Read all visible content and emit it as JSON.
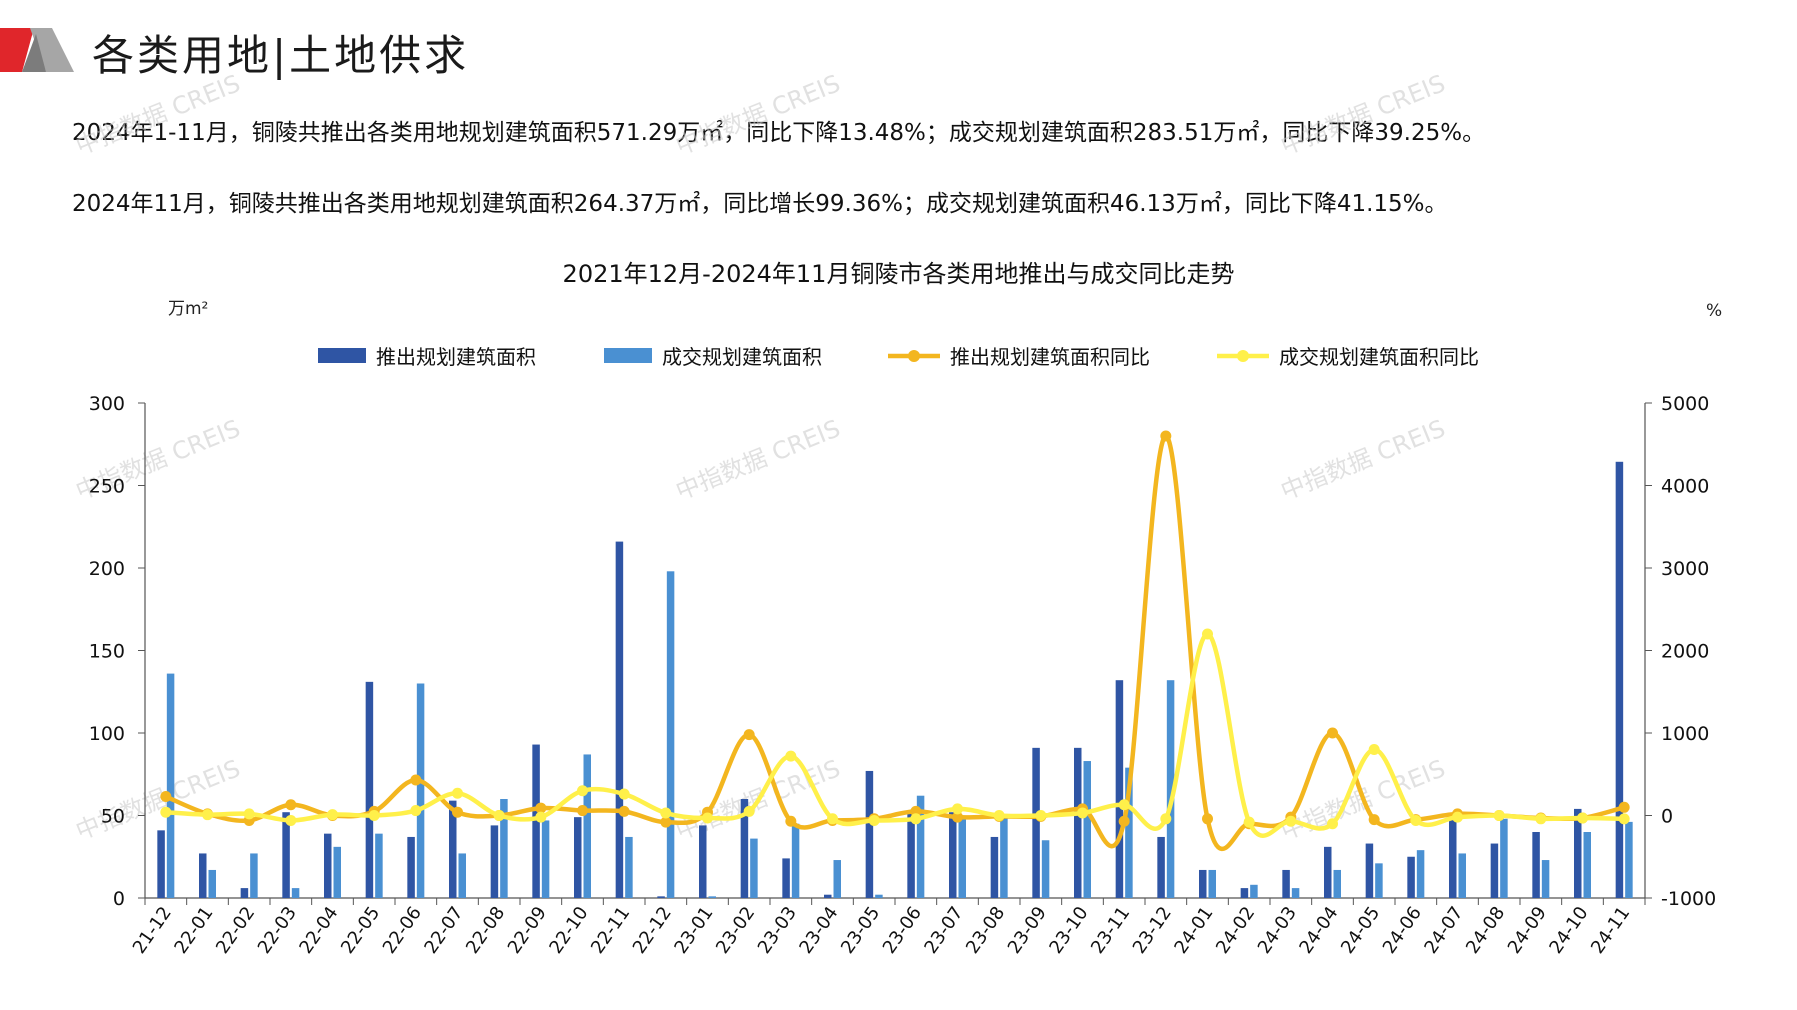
{
  "header": {
    "title": "各类用地|土地供求"
  },
  "summary": {
    "line1": "2024年1-11月，铜陵共推出各类用地规划建筑面积571.29万㎡，同比下降13.48%；成交规划建筑面积283.51万㎡，同比下降39.25%。",
    "line2": "2024年11月，铜陵共推出各类用地规划建筑面积264.37万㎡，同比增长99.36%；成交规划建筑面积46.13万㎡，同比下降41.15%。"
  },
  "watermark": "中指数据 CREIS",
  "colors": {
    "supply_bar": "#2f55a4",
    "deal_bar": "#4a90d2",
    "supply_yoy": "#f3b61f",
    "deal_yoy": "#fff04a",
    "accent_red": "#e0262b",
    "accent_gray": "#9c9c9c"
  },
  "chart_data": {
    "type": "bar",
    "title": "2021年12月-2024年11月铜陵市各类用地推出与成交同比走势",
    "ylabel_left": "万m²",
    "ylabel_right": "%",
    "ylim_left": [
      0,
      300
    ],
    "yticks_left": [
      "0",
      "50",
      "100",
      "150",
      "200",
      "250",
      "300"
    ],
    "ylim_right": [
      -1000,
      5000
    ],
    "yticks_right": [
      "-1000",
      "0",
      "1000",
      "2000",
      "3000",
      "4000",
      "5000"
    ],
    "legend_position": "top",
    "categories": [
      "21-12",
      "22-01",
      "22-02",
      "22-03",
      "22-04",
      "22-05",
      "22-06",
      "22-07",
      "22-08",
      "22-09",
      "22-10",
      "22-11",
      "22-12",
      "23-01",
      "23-02",
      "23-03",
      "23-04",
      "23-05",
      "23-06",
      "23-07",
      "23-08",
      "23-09",
      "23-10",
      "23-11",
      "23-12",
      "24-01",
      "24-02",
      "24-03",
      "24-04",
      "24-05",
      "24-06",
      "24-07",
      "24-08",
      "24-09",
      "24-10",
      "24-11"
    ],
    "series": [
      {
        "name": "推出规划建筑面积",
        "type": "bar",
        "axis": "left",
        "values": [
          41,
          27,
          6,
          52,
          39,
          131,
          37,
          59,
          44,
          93,
          49,
          216,
          1,
          44,
          60,
          24,
          2,
          77,
          52,
          52,
          37,
          91,
          91,
          132,
          37,
          17,
          6,
          17,
          31,
          33,
          25,
          50,
          33,
          40,
          54,
          264.37
        ]
      },
      {
        "name": "成交规划建筑面积",
        "type": "bar",
        "axis": "left",
        "values": [
          136,
          17,
          27,
          6,
          31,
          39,
          130,
          27,
          60,
          47,
          87,
          37,
          198,
          1,
          36,
          45,
          23,
          2,
          62,
          50,
          49,
          35,
          83,
          79,
          132,
          17,
          8,
          6,
          17,
          21,
          29,
          27,
          48,
          23,
          40,
          46.13
        ]
      },
      {
        "name": "推出规划建筑面积同比",
        "type": "line",
        "axis": "right",
        "values": [
          230,
          20,
          -60,
          130,
          0,
          50,
          430,
          40,
          0,
          90,
          60,
          50,
          -80,
          40,
          980,
          -70,
          -60,
          -40,
          50,
          -20,
          -10,
          -10,
          80,
          -70,
          4600,
          -40,
          -100,
          -20,
          1000,
          -50,
          -50,
          20,
          0,
          -30,
          -30,
          99.36
        ]
      },
      {
        "name": "成交规划建筑面积同比",
        "type": "line",
        "axis": "right",
        "values": [
          40,
          10,
          20,
          -60,
          10,
          0,
          60,
          270,
          0,
          -20,
          300,
          260,
          30,
          -30,
          50,
          720,
          -40,
          -60,
          -40,
          80,
          0,
          0,
          30,
          130,
          -40,
          2200,
          -80,
          -70,
          -100,
          800,
          -60,
          -20,
          0,
          -40,
          -30,
          -41.15
        ]
      }
    ]
  }
}
